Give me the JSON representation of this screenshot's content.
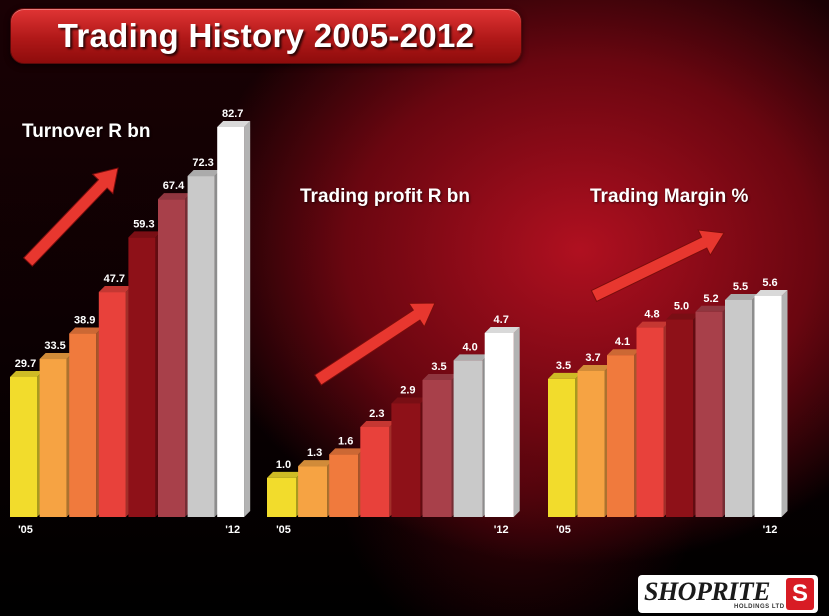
{
  "title": "Trading History 2005-2012",
  "bar_colors": [
    "#f2dc2c",
    "#f6a343",
    "#f07a3d",
    "#e8413b",
    "#8e1118",
    "#a8404a",
    "#c9c9c9",
    "#ffffff"
  ],
  "arrow_color": "#e8372f",
  "logo": {
    "text": "SHOPRITE",
    "sub": "HOLDINGS LTD",
    "badge": "S"
  },
  "chart_data": [
    {
      "type": "bar",
      "title": "Turnover R bn",
      "categories": [
        "'05",
        "",
        "",
        "",
        "",
        "",
        "",
        "'12"
      ],
      "values": [
        29.7,
        33.5,
        38.9,
        47.7,
        59.3,
        67.4,
        72.3,
        82.7
      ],
      "labels": [
        "29.7",
        "33.5",
        "38.9",
        "47.7",
        "59.3",
        "67.4",
        "72.3",
        "82.7"
      ],
      "ylim": [
        0,
        82.7
      ]
    },
    {
      "type": "bar",
      "title": "Trading profit R bn",
      "categories": [
        "'05",
        "",
        "",
        "",
        "",
        "",
        "",
        "'12"
      ],
      "values": [
        1.0,
        1.3,
        1.6,
        2.3,
        2.9,
        3.5,
        4.0,
        4.7
      ],
      "labels": [
        "1.0",
        "1.3",
        "1.6",
        "2.3",
        "2.9",
        "3.5",
        "4.0",
        "4.7"
      ],
      "ylim": [
        0,
        4.7
      ]
    },
    {
      "type": "bar",
      "title": "Trading Margin %",
      "categories": [
        "'05",
        "",
        "",
        "",
        "",
        "",
        "",
        "'12"
      ],
      "values": [
        3.5,
        3.7,
        4.1,
        4.8,
        5.0,
        5.2,
        5.5,
        5.6
      ],
      "labels": [
        "3.5",
        "3.7",
        "4.1",
        "4.8",
        "5.0",
        "5.2",
        "5.5",
        "5.6"
      ],
      "ylim": [
        0,
        5.6
      ]
    }
  ]
}
